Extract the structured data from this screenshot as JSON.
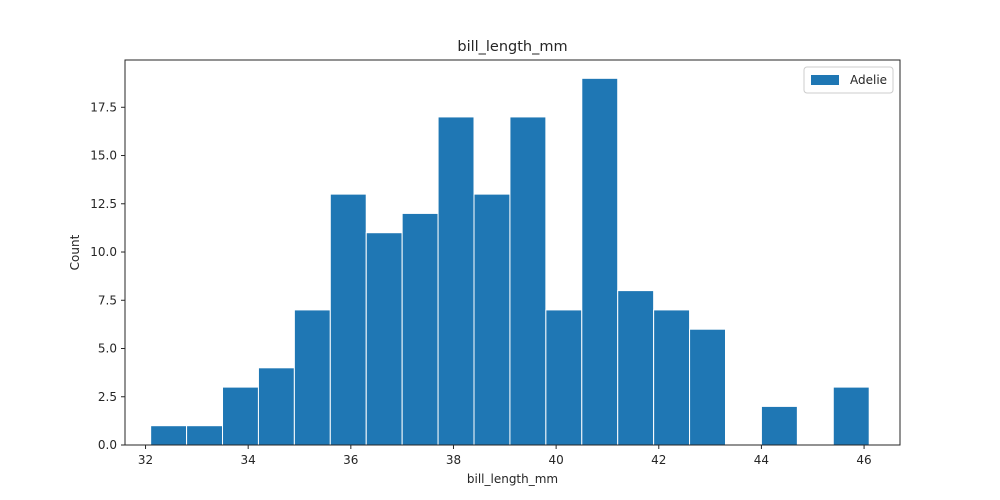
{
  "chart_data": {
    "type": "bar",
    "title": "bill_length_mm",
    "xlabel": "bill_length_mm",
    "ylabel": "Count",
    "xlim": [
      31.6,
      46.7
    ],
    "ylim": [
      0,
      19.95
    ],
    "xticks": [
      32,
      34,
      36,
      38,
      40,
      42,
      44,
      46
    ],
    "xtick_labels": [
      "32",
      "34",
      "36",
      "38",
      "40",
      "42",
      "44",
      "46"
    ],
    "yticks": [
      0,
      2.5,
      5,
      7.5,
      10,
      12.5,
      15,
      17.5
    ],
    "ytick_labels": [
      "0.0",
      "2.5",
      "5.0",
      "7.5",
      "10.0",
      "12.5",
      "15.0",
      "17.5"
    ],
    "bin_edges": [
      32.1,
      32.8,
      33.5,
      34.2,
      34.9,
      35.6,
      36.3,
      37.0,
      37.7,
      38.4,
      39.1,
      39.8,
      40.5,
      41.2,
      41.9,
      42.6,
      43.3,
      44.0,
      44.7,
      45.4,
      46.1
    ],
    "series": [
      {
        "name": "Adelie",
        "color": "#1f77b4",
        "values": [
          1,
          1,
          3,
          4,
          7,
          13,
          11,
          12,
          17,
          13,
          17,
          7,
          19,
          8,
          7,
          6,
          0,
          2,
          0,
          3
        ]
      }
    ],
    "legend": "top-right",
    "grid": false
  }
}
